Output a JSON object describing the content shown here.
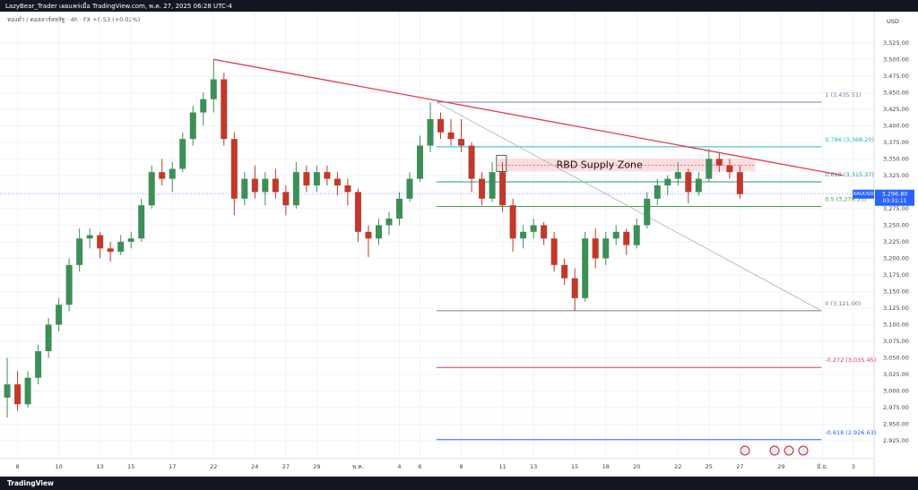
{
  "header": {
    "publisher": "LazyBear_Trader เผยแพร่เมื่อ TradingView.com, พ.ค. 27, 2025 06:28 UTC-4",
    "symbol_info": "ทองคำ / ดอลลาร์สหรัฐ · 4h · FX  +0.53 (+0.02%)",
    "currency": "USD"
  },
  "footer": {
    "brand": "TradingView"
  },
  "chart_data": {
    "type": "candlestick",
    "up_color": "#3d8f58",
    "down_color": "#c0392b",
    "xlim": [
      -0.7,
      84
    ],
    "ylim": [
      2898,
      3572
    ],
    "xticks": [
      {
        "value": 1,
        "label": "8"
      },
      {
        "value": 5,
        "label": "10"
      },
      {
        "value": 9,
        "label": "13"
      },
      {
        "value": 12,
        "label": "15"
      },
      {
        "value": 16,
        "label": "17"
      },
      {
        "value": 20,
        "label": "22"
      },
      {
        "value": 24,
        "label": "24"
      },
      {
        "value": 27,
        "label": "27"
      },
      {
        "value": 30,
        "label": "29"
      },
      {
        "value": 34,
        "label": "พ.ค."
      },
      {
        "value": 38,
        "label": "4"
      },
      {
        "value": 40,
        "label": "6"
      },
      {
        "value": 44,
        "label": "8"
      },
      {
        "value": 48,
        "label": "11"
      },
      {
        "value": 51,
        "label": "13"
      },
      {
        "value": 55,
        "label": "15"
      },
      {
        "value": 58,
        "label": "18"
      },
      {
        "value": 61,
        "label": "20"
      },
      {
        "value": 65,
        "label": "22"
      },
      {
        "value": 68,
        "label": "25"
      },
      {
        "value": 71,
        "label": "27"
      },
      {
        "value": 75,
        "label": "29"
      },
      {
        "value": 79,
        "label": "มิ.ย."
      },
      {
        "value": 82,
        "label": "3"
      }
    ],
    "yticks": [
      {
        "value": 2925,
        "label": "2,925.00"
      },
      {
        "value": 2950,
        "label": "2,950.00"
      },
      {
        "value": 2975,
        "label": "2,975.00"
      },
      {
        "value": 3000,
        "label": "3,000.00"
      },
      {
        "value": 3025,
        "label": "3,025.00"
      },
      {
        "value": 3050,
        "label": "3,050.00"
      },
      {
        "value": 3075,
        "label": "3,075.00"
      },
      {
        "value": 3100,
        "label": "3,100.00"
      },
      {
        "value": 3125,
        "label": "3,125.00"
      },
      {
        "value": 3150,
        "label": "3,150.00"
      },
      {
        "value": 3175,
        "label": "3,175.00"
      },
      {
        "value": 3200,
        "label": "3,200.00"
      },
      {
        "value": 3225,
        "label": "3,225.00"
      },
      {
        "value": 3250,
        "label": "3,250.00"
      },
      {
        "value": 3275,
        "label": "3,275.00"
      },
      {
        "value": 3300,
        "label": "3,300.00"
      },
      {
        "value": 3325,
        "label": "3,325.00"
      },
      {
        "value": 3350,
        "label": "3,350.00"
      },
      {
        "value": 3375,
        "label": "3,375.00"
      },
      {
        "value": 3400,
        "label": "3,400.00"
      },
      {
        "value": 3425,
        "label": "3,425.00"
      },
      {
        "value": 3450,
        "label": "3,450.00"
      },
      {
        "value": 3475,
        "label": "3,475.00"
      },
      {
        "value": 3500,
        "label": "3,500.00"
      },
      {
        "value": 3525,
        "label": "3,525.00"
      }
    ],
    "candles": [
      [
        2990,
        3050,
        2960,
        3010
      ],
      [
        3010,
        3030,
        2970,
        2980
      ],
      [
        2980,
        3030,
        2975,
        3020
      ],
      [
        3020,
        3070,
        3010,
        3060
      ],
      [
        3060,
        3110,
        3050,
        3100
      ],
      [
        3100,
        3140,
        3090,
        3130
      ],
      [
        3130,
        3200,
        3120,
        3190
      ],
      [
        3190,
        3245,
        3180,
        3230
      ],
      [
        3230,
        3245,
        3215,
        3235
      ],
      [
        3235,
        3240,
        3200,
        3215
      ],
      [
        3215,
        3225,
        3195,
        3210
      ],
      [
        3210,
        3235,
        3205,
        3225
      ],
      [
        3225,
        3240,
        3215,
        3230
      ],
      [
        3230,
        3290,
        3225,
        3280
      ],
      [
        3280,
        3340,
        3275,
        3330
      ],
      [
        3330,
        3350,
        3310,
        3320
      ],
      [
        3320,
        3345,
        3300,
        3335
      ],
      [
        3335,
        3390,
        3330,
        3380
      ],
      [
        3380,
        3430,
        3370,
        3420
      ],
      [
        3420,
        3450,
        3400,
        3440
      ],
      [
        3440,
        3500,
        3420,
        3470
      ],
      [
        3470,
        3480,
        3370,
        3380
      ],
      [
        3380,
        3390,
        3265,
        3290
      ],
      [
        3290,
        3330,
        3280,
        3320
      ],
      [
        3320,
        3340,
        3290,
        3300
      ],
      [
        3300,
        3330,
        3280,
        3320
      ],
      [
        3320,
        3335,
        3290,
        3300
      ],
      [
        3300,
        3310,
        3265,
        3280
      ],
      [
        3280,
        3345,
        3275,
        3330
      ],
      [
        3330,
        3340,
        3300,
        3310
      ],
      [
        3310,
        3340,
        3300,
        3330
      ],
      [
        3330,
        3340,
        3310,
        3320
      ],
      [
        3320,
        3330,
        3295,
        3310
      ],
      [
        3310,
        3320,
        3280,
        3300
      ],
      [
        3300,
        3305,
        3225,
        3240
      ],
      [
        3240,
        3250,
        3202,
        3230
      ],
      [
        3230,
        3260,
        3220,
        3250
      ],
      [
        3250,
        3270,
        3235,
        3260
      ],
      [
        3260,
        3300,
        3250,
        3290
      ],
      [
        3290,
        3330,
        3285,
        3320
      ],
      [
        3320,
        3385,
        3315,
        3370
      ],
      [
        3370,
        3435,
        3360,
        3410
      ],
      [
        3410,
        3420,
        3380,
        3390
      ],
      [
        3390,
        3410,
        3370,
        3380
      ],
      [
        3380,
        3410,
        3360,
        3370
      ],
      [
        3370,
        3375,
        3300,
        3320
      ],
      [
        3320,
        3330,
        3280,
        3290
      ],
      [
        3290,
        3345,
        3285,
        3330
      ],
      [
        3330,
        3345,
        3270,
        3280
      ],
      [
        3280,
        3290,
        3210,
        3230
      ],
      [
        3230,
        3250,
        3215,
        3240
      ],
      [
        3240,
        3260,
        3230,
        3250
      ],
      [
        3250,
        3255,
        3220,
        3230
      ],
      [
        3230,
        3240,
        3180,
        3190
      ],
      [
        3190,
        3200,
        3160,
        3170
      ],
      [
        3170,
        3185,
        3121,
        3140
      ],
      [
        3140,
        3240,
        3135,
        3230
      ],
      [
        3230,
        3245,
        3185,
        3200
      ],
      [
        3200,
        3240,
        3190,
        3230
      ],
      [
        3230,
        3250,
        3220,
        3240
      ],
      [
        3240,
        3245,
        3205,
        3220
      ],
      [
        3220,
        3260,
        3215,
        3250
      ],
      [
        3250,
        3300,
        3245,
        3290
      ],
      [
        3290,
        3320,
        3280,
        3310
      ],
      [
        3310,
        3325,
        3295,
        3320
      ],
      [
        3320,
        3345,
        3310,
        3330
      ],
      [
        3330,
        3335,
        3283,
        3300
      ],
      [
        3300,
        3330,
        3295,
        3320
      ],
      [
        3320,
        3365,
        3315,
        3350
      ],
      [
        3350,
        3360,
        3330,
        3340
      ],
      [
        3340,
        3350,
        3320,
        3330
      ],
      [
        3330,
        3340,
        3290,
        3296.8
      ]
    ],
    "trendline": {
      "color": "#e53950",
      "x": [
        20,
        81
      ],
      "y": [
        3500,
        3325
      ]
    },
    "diagonal": {
      "color": "#b0b0b0",
      "x": [
        41.6,
        78.9
      ],
      "y": [
        3435.51,
        3121
      ]
    },
    "fib_range": [
      41.6,
      78.9
    ],
    "fib_levels": [
      {
        "label": "1 (3,435.51)",
        "value": 3435.51,
        "color": "#7a7f9a"
      },
      {
        "label": "0.786 (3,368.20)",
        "value": 3368.2,
        "color": "#26b5c9"
      },
      {
        "label": "0.618 (3,315.37)",
        "value": 3315.37,
        "color": "#1f9e8a"
      },
      {
        "label": "0.5 (3,278.25)",
        "value": 3278.25,
        "color": "#43a047"
      },
      {
        "label": "0 (3,121.00)",
        "value": 3121,
        "color": "#787b86"
      },
      {
        "label": "-0.272 (3,035.45)",
        "value": 3035.45,
        "color": "#e53950"
      },
      {
        "label": "-0.618 (2,926.63)",
        "value": 2926.63,
        "color": "#2962ff"
      }
    ],
    "supply_zone": {
      "label": "RBD Supply Zone",
      "x": [
        47.5,
        72.5
      ],
      "y": [
        3331,
        3350
      ],
      "color": "#f8c8d0"
    },
    "current": {
      "symbol": "XAUUSD",
      "value": 3296.8,
      "label": "3,296.80",
      "countdown": "03:31:11",
      "color": "#2962ff"
    }
  }
}
